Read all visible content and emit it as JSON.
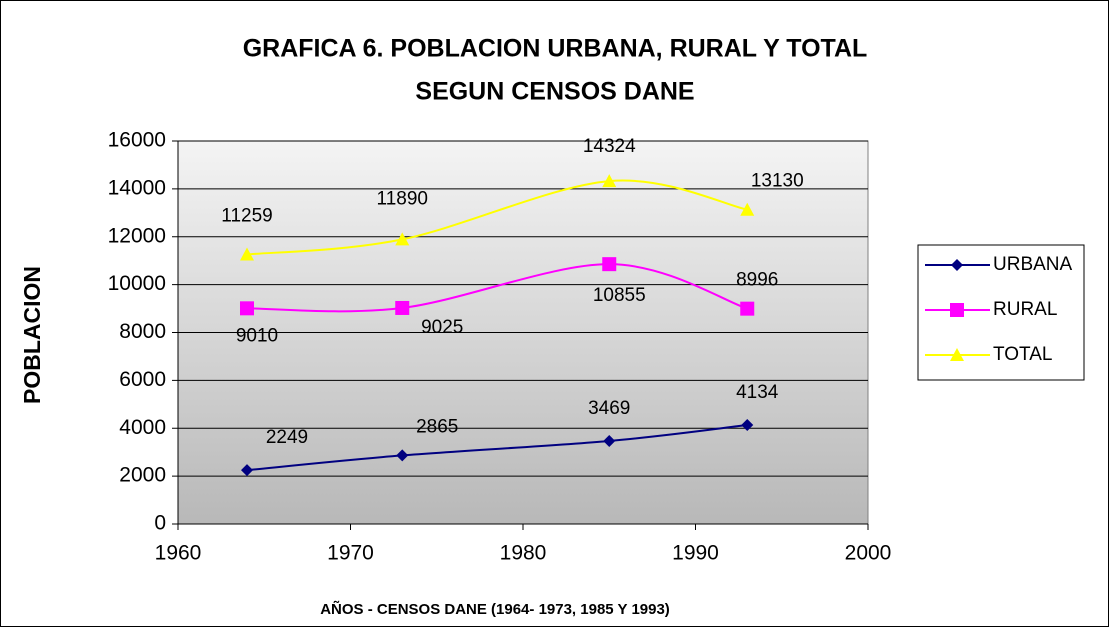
{
  "chart_data": {
    "type": "line",
    "title": "GRAFICA 6. POBLACION URBANA, RURAL Y TOTAL",
    "subtitle": "SEGUN CENSOS DANE",
    "x_label": "AÑOS - CENSOS DANE (1964- 1973, 1985 Y 1993)",
    "y_label": "POBLACION",
    "x": [
      1964,
      1973,
      1985,
      1993
    ],
    "series": [
      {
        "name": "URBANA",
        "color": "#000080",
        "marker": "diamond",
        "values": [
          2249,
          2865,
          3469,
          4134
        ]
      },
      {
        "name": "RURAL",
        "color": "#ff00ff",
        "marker": "square",
        "values": [
          9010,
          9025,
          10855,
          8996
        ]
      },
      {
        "name": "TOTAL",
        "color": "#ffff00",
        "marker": "triangle",
        "values": [
          11259,
          11890,
          14324,
          13130
        ]
      }
    ],
    "xlim": [
      1960,
      2000
    ],
    "xticks": [
      1960,
      1970,
      1980,
      1990,
      2000
    ],
    "ylim": [
      0,
      16000
    ],
    "yticks": [
      0,
      2000,
      4000,
      6000,
      8000,
      10000,
      12000,
      14000,
      16000
    ],
    "grid": true,
    "legend": "right"
  }
}
